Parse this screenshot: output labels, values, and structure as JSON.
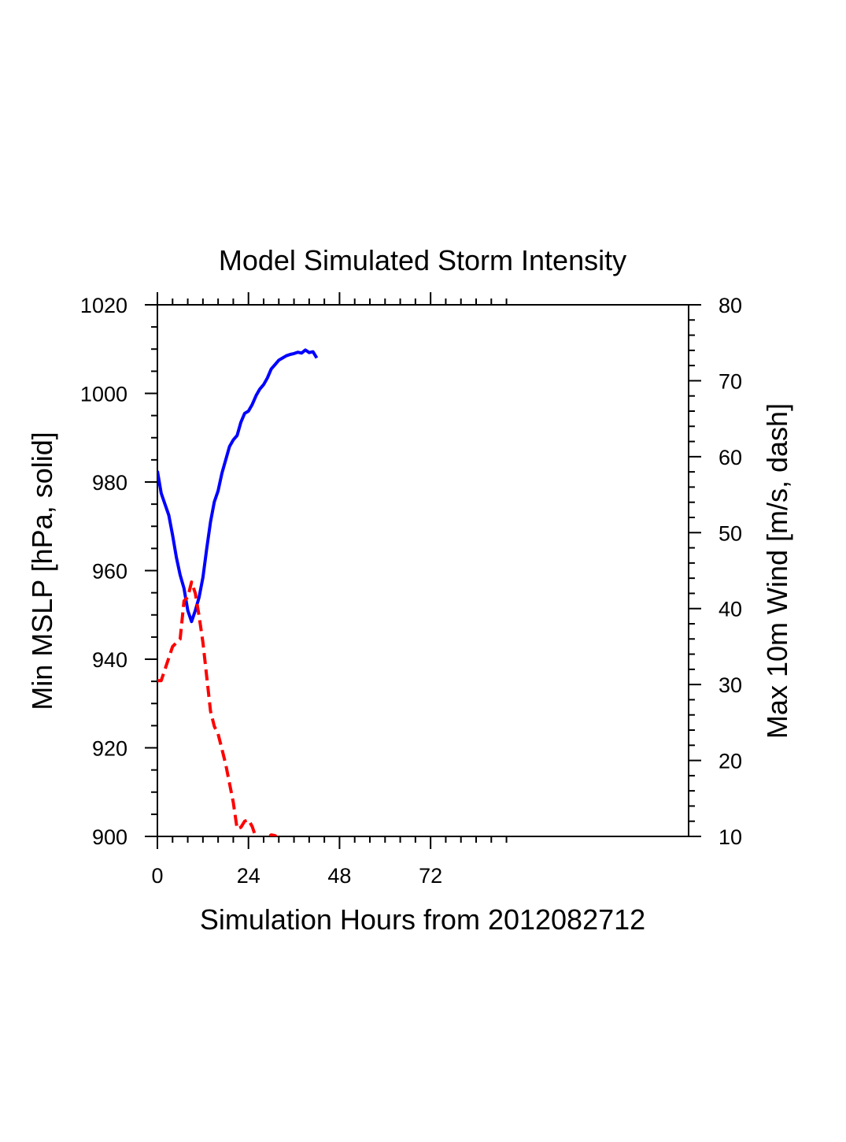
{
  "chart_data": {
    "type": "line",
    "title": "Model Simulated Storm Intensity",
    "xlabel": "Simulation Hours from 2012082712",
    "ylabel_left": "Min MSLP  [hPa, solid]",
    "ylabel_right": "Max 10m Wind  [m/s, dash]",
    "xlim": [
      0,
      140
    ],
    "ylim_left": [
      900,
      1020
    ],
    "ylim_right": [
      10,
      80
    ],
    "x_ticks": [
      0,
      24,
      48,
      72
    ],
    "x_tick_labels": [
      "0",
      "24",
      "48",
      "72"
    ],
    "y_left_ticks": [
      900,
      920,
      940,
      960,
      980,
      1000,
      1020
    ],
    "y_left_tick_labels": [
      "900",
      "920",
      "940",
      "960",
      "980",
      "1000",
      "1020"
    ],
    "y_right_ticks": [
      10,
      20,
      30,
      40,
      50,
      60,
      70,
      80
    ],
    "y_right_tick_labels": [
      "10",
      "20",
      "30",
      "40",
      "50",
      "60",
      "70",
      "80"
    ],
    "grid": false,
    "legend": "none",
    "series": [
      {
        "axis": "left",
        "style": "solid",
        "color": "#0000ff",
        "x": [
          0,
          1,
          2,
          3,
          4,
          5,
          6,
          7,
          8,
          9,
          10,
          11,
          12,
          13,
          14,
          15,
          16,
          17,
          18,
          19,
          20,
          21,
          22,
          23,
          24,
          25,
          26,
          27,
          28,
          29,
          30,
          31,
          32,
          33,
          34,
          35,
          36,
          37,
          38,
          39,
          40,
          41,
          42
        ],
        "values": [
          982.5,
          977.5,
          975,
          972.5,
          968,
          963,
          959,
          956,
          951,
          948.5,
          951,
          954,
          958.5,
          965,
          971,
          975.5,
          978,
          982,
          985,
          988,
          989.5,
          990.5,
          993.5,
          995.5,
          996,
          997.5,
          999.5,
          1001,
          1002,
          1003.5,
          1005.5,
          1006.5,
          1007.5,
          1008,
          1008.5,
          1008.8,
          1009,
          1009.3,
          1009.1,
          1009.8,
          1009.2,
          1009.4,
          1008
        ]
      },
      {
        "axis": "right",
        "style": "dashed",
        "color": "#ff0000",
        "x": [
          0,
          1,
          2,
          3,
          4,
          5,
          6,
          7,
          8,
          9,
          10,
          11,
          12,
          13,
          14,
          15,
          16,
          17,
          18,
          19,
          20,
          21,
          22,
          23,
          24,
          25,
          26,
          27,
          28,
          29,
          30,
          31,
          32
        ],
        "values": [
          30.5,
          30.5,
          32,
          33.5,
          35,
          35.5,
          36,
          41,
          41.5,
          43.5,
          42,
          39,
          35.5,
          31,
          26.5,
          24.5,
          23.5,
          21.5,
          19.5,
          17,
          14.5,
          11,
          11.2,
          12,
          12.2,
          11.3,
          9.8,
          9.3,
          9.6,
          9.8,
          10.2,
          10.1,
          9.7
        ]
      }
    ]
  }
}
